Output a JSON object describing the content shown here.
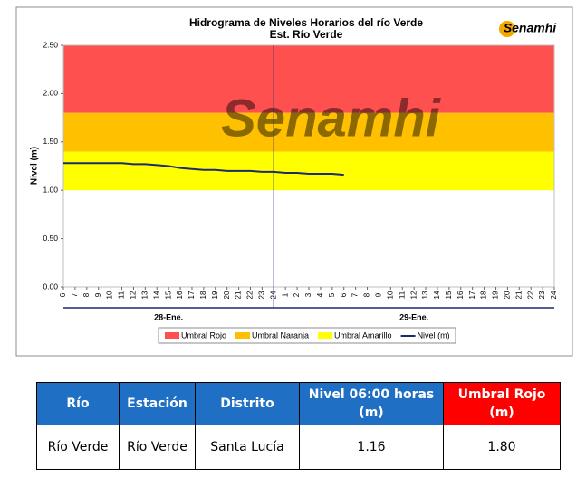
{
  "chart_data": {
    "type": "line",
    "title": "Hidrograma de Niveles Horarios del río Verde",
    "subtitle": "Est. Río Verde",
    "logo": "Senamhi",
    "watermark": "Senamhi",
    "y_label": "Nivel (m)",
    "ylim": [
      0,
      2.5
    ],
    "yticks": [
      {
        "value": 0,
        "label": "0.00"
      },
      {
        "value": 0.5,
        "label": "0.50"
      },
      {
        "value": 1,
        "label": "1.00"
      },
      {
        "value": 1.5,
        "label": "1.50"
      },
      {
        "value": 2,
        "label": "2.00"
      },
      {
        "value": 2.5,
        "label": "2.50"
      }
    ],
    "categories": [
      "6",
      "7",
      "8",
      "9",
      "10",
      "11",
      "12",
      "13",
      "14",
      "15",
      "16",
      "17",
      "18",
      "19",
      "20",
      "21",
      "22",
      "23",
      "24",
      "1",
      "2",
      "3",
      "4",
      "5",
      "6",
      "7",
      "8",
      "9",
      "10",
      "11",
      "12",
      "13",
      "14",
      "15",
      "16",
      "17",
      "18",
      "19",
      "20",
      "21",
      "22",
      "23",
      "24"
    ],
    "days": [
      "28-Ene.",
      "29-Ene."
    ],
    "thresholds": [
      {
        "name": "Umbral Rojo",
        "color": "#ff5050",
        "value": 1.8
      },
      {
        "name": "Umbral Naranja",
        "color": "#ffc000",
        "value": 1.4
      },
      {
        "name": "Umbral Amarillo",
        "color": "#ffff00",
        "value": 1.0
      }
    ],
    "series": [
      {
        "name": "Nivel (m)",
        "color": "#1f2a6b",
        "values": [
          1.28,
          1.28,
          1.28,
          1.28,
          1.28,
          1.28,
          1.27,
          1.27,
          1.26,
          1.25,
          1.23,
          1.22,
          1.21,
          1.21,
          1.2,
          1.2,
          1.2,
          1.19,
          1.19,
          1.18,
          1.18,
          1.17,
          1.17,
          1.17,
          1.16,
          null,
          null,
          null,
          null,
          null,
          null,
          null,
          null,
          null,
          null,
          null,
          null,
          null,
          null,
          null,
          null,
          null,
          null
        ]
      }
    ]
  },
  "table": {
    "header": [
      "Río",
      "Estación",
      "Distrito",
      "Nivel 06:00 horas (m)",
      "Umbral Rojo (m)"
    ],
    "rows": [
      [
        "Río Verde",
        "Río Verde",
        "Santa Lucía",
        "1.16",
        "1.80"
      ]
    ]
  }
}
